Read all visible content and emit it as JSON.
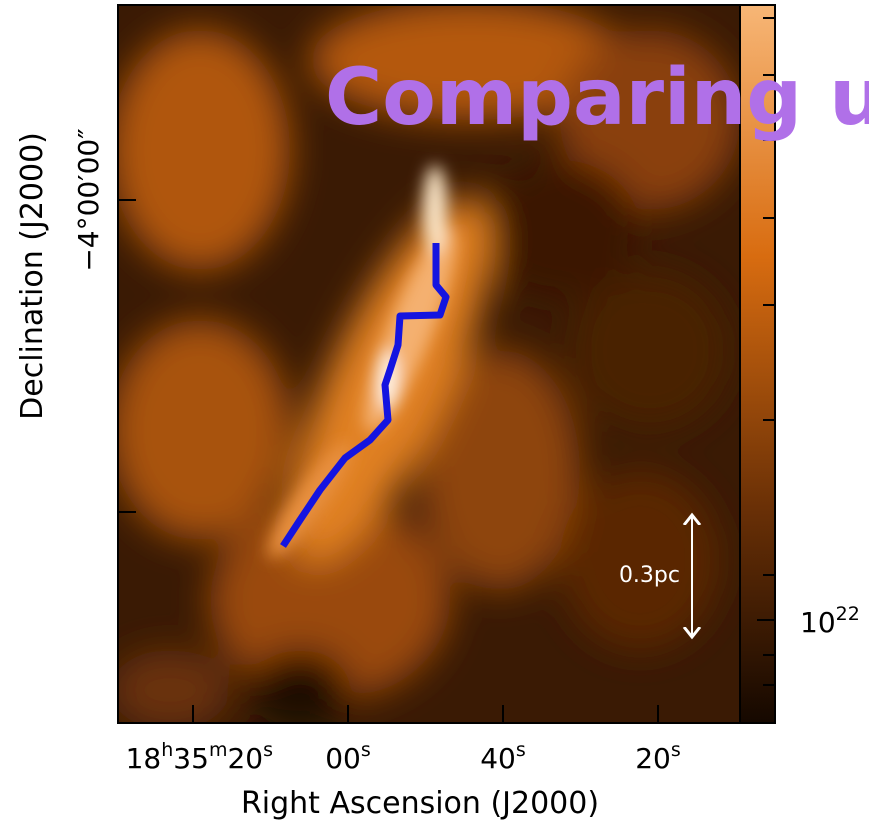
{
  "title": "Comparing u",
  "x_axis": {
    "label": "Right Ascension (J2000)",
    "ticks": [
      [
        {
          "text": "18"
        },
        {
          "text": "h",
          "sup": true
        },
        {
          "text": "35"
        },
        {
          "text": "m",
          "sup": true
        },
        {
          "text": "20"
        },
        {
          "text": "s",
          "sup": true
        }
      ],
      [
        {
          "text": "00"
        },
        {
          "text": "s",
          "sup": true
        }
      ],
      [
        {
          "text": "40"
        },
        {
          "text": "s",
          "sup": true
        }
      ],
      [
        {
          "text": "20"
        },
        {
          "text": "s",
          "sup": true
        }
      ]
    ]
  },
  "y_axis": {
    "label": "Declination (J2000)",
    "ticks": [
      [
        {
          "text": "−4°00′00″"
        }
      ]
    ]
  },
  "scale_bar": "0.3pc",
  "colorbar_label": [
    {
      "text": "10"
    },
    {
      "text": "22",
      "sup": true
    }
  ]
}
